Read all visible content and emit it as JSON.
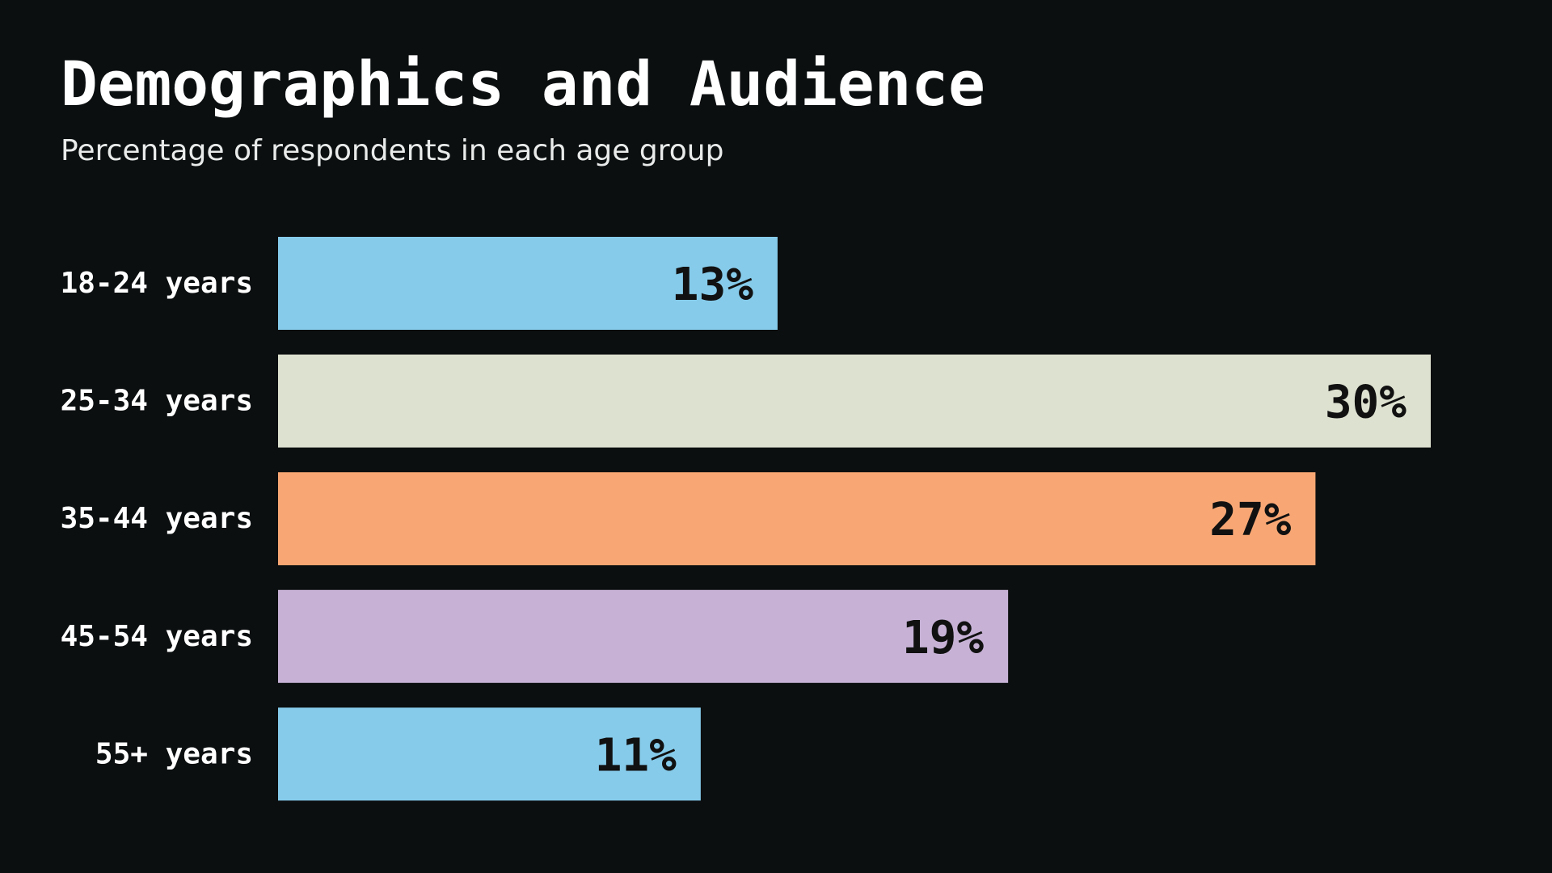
{
  "chart_data": {
    "type": "bar",
    "orientation": "horizontal",
    "title": "Demographics and Audience",
    "subtitle": "Percentage of respondents in each age group",
    "categories": [
      "18-24 years",
      "25-34 years",
      "35-44 years",
      "45-54 years",
      "55+ years"
    ],
    "values": [
      13,
      30,
      27,
      19,
      11
    ],
    "value_labels": [
      "13%",
      "30%",
      "27%",
      "19%",
      "11%"
    ],
    "colors": [
      "#86cbea",
      "#dde2d0",
      "#f8a774",
      "#c7b2d6",
      "#86cbea"
    ],
    "xlim": [
      0,
      30
    ],
    "grid": false,
    "legend": "none"
  }
}
